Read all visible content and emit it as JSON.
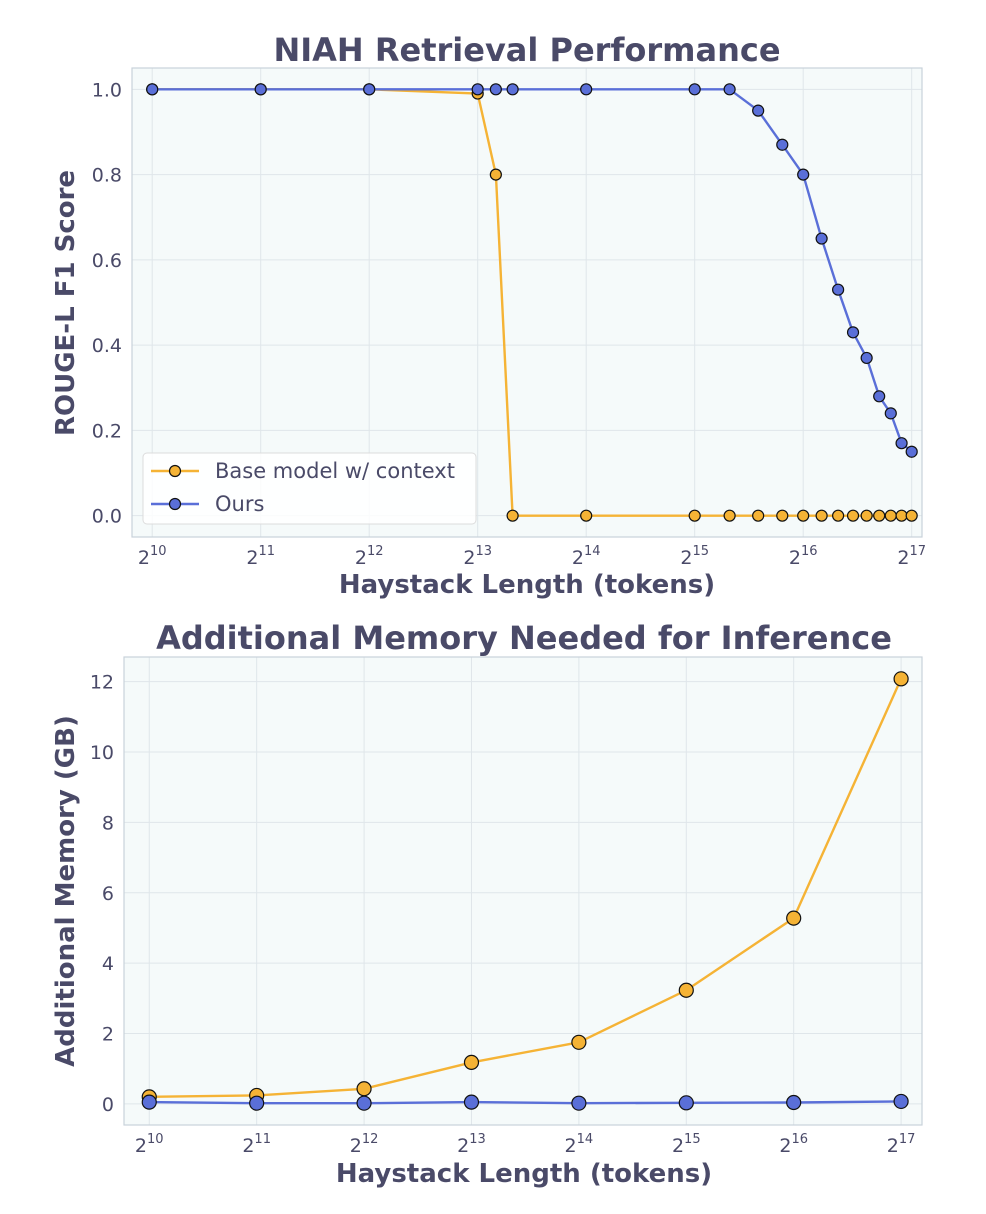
{
  "colors": {
    "base": "#f5b335",
    "ours": "#5a6fd8",
    "panel_bg": "#f5fafa",
    "grid": "#dfe6ea",
    "spine": "#c9d2da",
    "text": "#4a4a68"
  },
  "chart_data": [
    {
      "type": "line",
      "title": "NIAH Retrieval Performance",
      "xlabel": "Haystack Length (tokens)",
      "ylabel": "ROUGE-L F1 Score",
      "x_scale": "log2",
      "xlim": [
        900,
        140000
      ],
      "ylim": [
        -0.05,
        1.05
      ],
      "x_ticks": [
        1024,
        2048,
        4096,
        8192,
        16384,
        32768,
        65536,
        131072
      ],
      "x_tick_labels": [
        {
          "base": "2",
          "exp": "10"
        },
        {
          "base": "2",
          "exp": "11"
        },
        {
          "base": "2",
          "exp": "12"
        },
        {
          "base": "2",
          "exp": "13"
        },
        {
          "base": "2",
          "exp": "14"
        },
        {
          "base": "2",
          "exp": "15"
        },
        {
          "base": "2",
          "exp": "16"
        },
        {
          "base": "2",
          "exp": "17"
        }
      ],
      "y_ticks": [
        0.0,
        0.2,
        0.4,
        0.6,
        0.8,
        1.0
      ],
      "y_tick_labels": [
        "0.0",
        "0.2",
        "0.4",
        "0.6",
        "0.8",
        "1.0"
      ],
      "grid": true,
      "legend": {
        "location": "lower-left",
        "entries": [
          "Base model w/ context",
          "Ours"
        ]
      },
      "series": [
        {
          "name": "Base model w/ context",
          "color_key": "base",
          "x": [
            1024,
            2048,
            4096,
            8192,
            9200,
            10240,
            16384,
            32768,
            40960,
            49152,
            57344,
            65536,
            73728,
            81920,
            90112,
            98304,
            106496,
            114688,
            122880,
            131072
          ],
          "y": [
            1.0,
            1.0,
            1.0,
            0.99,
            0.8,
            0.0,
            0.0,
            0.0,
            0.0,
            0.0,
            0.0,
            0.0,
            0.0,
            0.0,
            0.0,
            0.0,
            0.0,
            0.0,
            0.0,
            0.0
          ]
        },
        {
          "name": "Ours",
          "color_key": "ours",
          "x": [
            1024,
            2048,
            4096,
            8192,
            9200,
            10240,
            16384,
            32768,
            40960,
            49152,
            57344,
            65536,
            73728,
            81920,
            90112,
            98304,
            106496,
            114688,
            122880,
            131072
          ],
          "y": [
            1.0,
            1.0,
            1.0,
            1.0,
            1.0,
            1.0,
            1.0,
            1.0,
            1.0,
            0.95,
            0.87,
            0.8,
            0.65,
            0.53,
            0.43,
            0.37,
            0.28,
            0.24,
            0.17,
            0.15
          ]
        }
      ]
    },
    {
      "type": "line",
      "title": "Additional Memory Needed for Inference",
      "xlabel": "Haystack Length (tokens)",
      "ylabel": "Additional Memory (GB)",
      "x_scale": "log2",
      "xlim": [
        870,
        150000
      ],
      "ylim": [
        -0.6,
        12.7
      ],
      "x_ticks": [
        1024,
        2048,
        4096,
        8192,
        16384,
        32768,
        65536,
        131072
      ],
      "x_tick_labels": [
        {
          "base": "2",
          "exp": "10"
        },
        {
          "base": "2",
          "exp": "11"
        },
        {
          "base": "2",
          "exp": "12"
        },
        {
          "base": "2",
          "exp": "13"
        },
        {
          "base": "2",
          "exp": "14"
        },
        {
          "base": "2",
          "exp": "15"
        },
        {
          "base": "2",
          "exp": "16"
        },
        {
          "base": "2",
          "exp": "17"
        }
      ],
      "y_ticks": [
        0,
        2,
        4,
        6,
        8,
        10,
        12
      ],
      "y_tick_labels": [
        "0",
        "2",
        "4",
        "6",
        "8",
        "10",
        "12"
      ],
      "grid": true,
      "series": [
        {
          "name": "Base model w/ context",
          "color_key": "base",
          "x": [
            1024,
            2048,
            4096,
            8192,
            16384,
            32768,
            65536,
            131072
          ],
          "y": [
            0.2,
            0.24,
            0.43,
            1.18,
            1.75,
            3.23,
            5.28,
            12.08
          ]
        },
        {
          "name": "Ours",
          "color_key": "ours",
          "x": [
            1024,
            2048,
            4096,
            8192,
            16384,
            32768,
            65536,
            131072
          ],
          "y": [
            0.05,
            0.02,
            0.02,
            0.05,
            0.02,
            0.03,
            0.04,
            0.07
          ]
        }
      ]
    }
  ]
}
